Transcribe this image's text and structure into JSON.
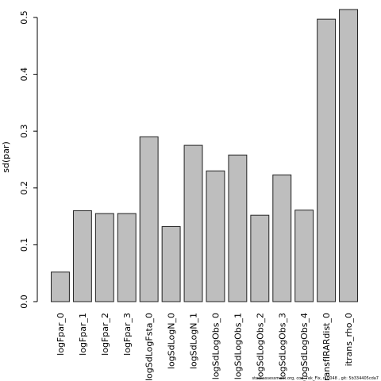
{
  "chart_data": {
    "type": "bar",
    "categories": [
      "logFpar_0",
      "logFpar_1",
      "logFpar_2",
      "logFpar_3",
      "logSdLogFsta_0",
      "logSdLogN_0",
      "logSdLogN_1",
      "logSdLogObs_0",
      "logSdLogObs_1",
      "logSdLogObs_2",
      "logSdLogObs_3",
      "logSdLogObs_4",
      "transfIRARdist_0",
      "itrans_rho_0"
    ],
    "values": [
      0.052,
      0.16,
      0.155,
      0.155,
      0.29,
      0.132,
      0.275,
      0.23,
      0.258,
      0.152,
      0.223,
      0.161,
      0.497,
      0.514
    ],
    "ylabel": "sd(par)",
    "ylim": [
      0,
      0.5
    ],
    "yticks": [
      "0.0",
      "0.1",
      "0.2",
      "0.3",
      "0.4",
      "0.5"
    ],
    "grid": false,
    "legend": "none",
    "bar_fill": "#bebebe",
    "bar_stroke": "#222222"
  },
  "footer": "stockassessment.org, cod_7ek_Flx, r10048 , git: 5b334405cda7"
}
